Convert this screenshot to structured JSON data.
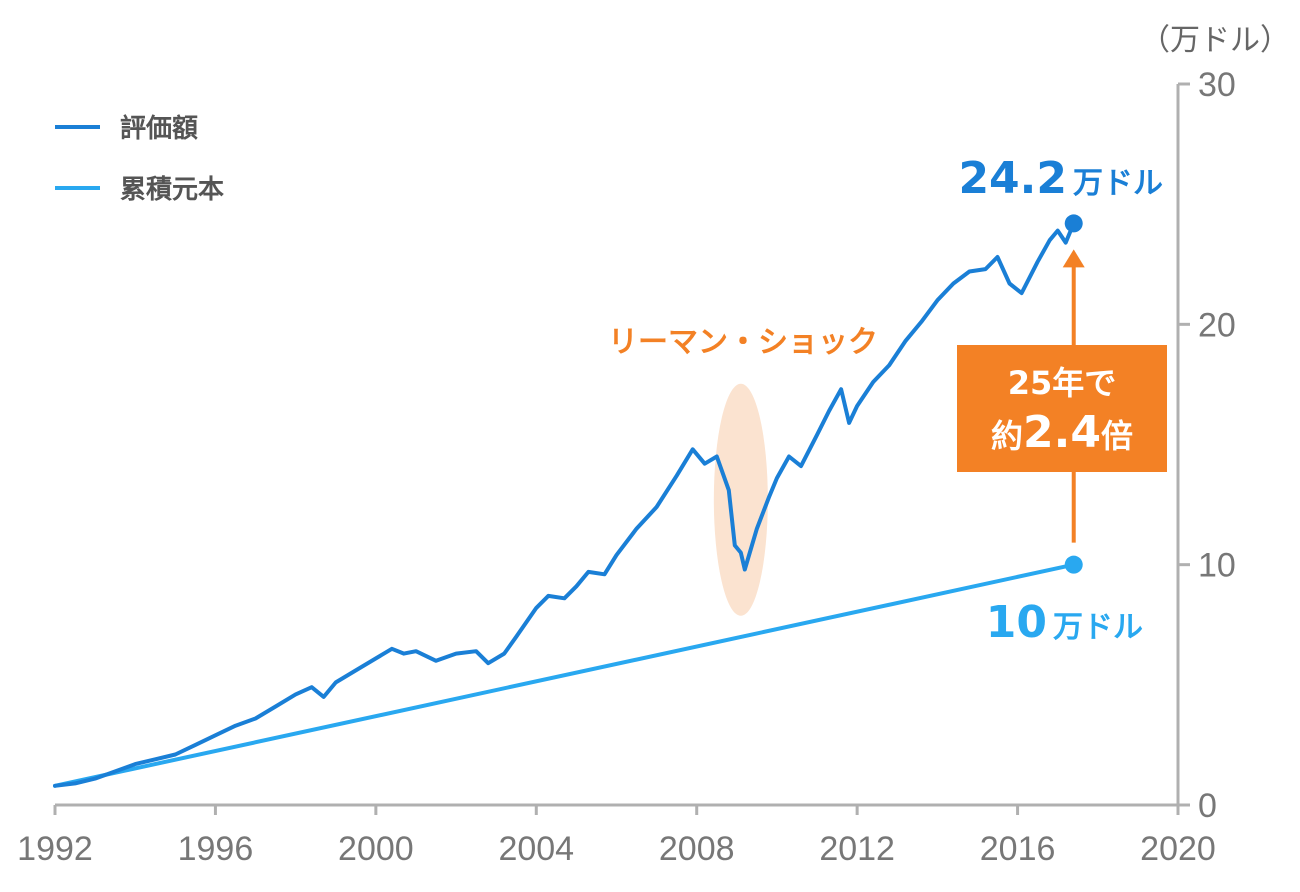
{
  "chart_data": {
    "type": "line",
    "unit_label": "（万ドル）",
    "x_ticks": [
      "1992",
      "1996",
      "2000",
      "2004",
      "2008",
      "2012",
      "2016",
      "2020"
    ],
    "y_ticks": [
      "0",
      "10",
      "20",
      "30"
    ],
    "xlim": [
      1992,
      2020
    ],
    "ylim": [
      0,
      30
    ],
    "grid": false,
    "legend_position": "top-left",
    "series": [
      {
        "name": "評価額",
        "color": "#1a7fd6",
        "points": [
          [
            1992.0,
            0.8
          ],
          [
            1992.5,
            0.9
          ],
          [
            1993.0,
            1.1
          ],
          [
            1993.5,
            1.4
          ],
          [
            1994.0,
            1.7
          ],
          [
            1994.5,
            1.9
          ],
          [
            1995.0,
            2.1
          ],
          [
            1995.5,
            2.5
          ],
          [
            1996.0,
            2.9
          ],
          [
            1996.5,
            3.3
          ],
          [
            1997.0,
            3.6
          ],
          [
            1997.5,
            4.1
          ],
          [
            1998.0,
            4.6
          ],
          [
            1998.4,
            4.9
          ],
          [
            1998.7,
            4.5
          ],
          [
            1999.0,
            5.1
          ],
          [
            1999.5,
            5.6
          ],
          [
            2000.0,
            6.1
          ],
          [
            2000.4,
            6.5
          ],
          [
            2000.7,
            6.3
          ],
          [
            2001.0,
            6.4
          ],
          [
            2001.5,
            6.0
          ],
          [
            2002.0,
            6.3
          ],
          [
            2002.5,
            6.4
          ],
          [
            2002.8,
            5.9
          ],
          [
            2003.2,
            6.3
          ],
          [
            2003.5,
            7.0
          ],
          [
            2004.0,
            8.2
          ],
          [
            2004.3,
            8.7
          ],
          [
            2004.7,
            8.6
          ],
          [
            2005.0,
            9.1
          ],
          [
            2005.3,
            9.7
          ],
          [
            2005.7,
            9.6
          ],
          [
            2006.0,
            10.4
          ],
          [
            2006.5,
            11.5
          ],
          [
            2007.0,
            12.4
          ],
          [
            2007.5,
            13.7
          ],
          [
            2007.9,
            14.8
          ],
          [
            2008.2,
            14.2
          ],
          [
            2008.5,
            14.5
          ],
          [
            2008.8,
            13.1
          ],
          [
            2008.95,
            10.8
          ],
          [
            2009.1,
            10.5
          ],
          [
            2009.2,
            9.8
          ],
          [
            2009.5,
            11.5
          ],
          [
            2009.8,
            12.8
          ],
          [
            2010.0,
            13.6
          ],
          [
            2010.3,
            14.5
          ],
          [
            2010.6,
            14.1
          ],
          [
            2011.0,
            15.4
          ],
          [
            2011.3,
            16.4
          ],
          [
            2011.6,
            17.3
          ],
          [
            2011.8,
            15.9
          ],
          [
            2012.0,
            16.6
          ],
          [
            2012.4,
            17.6
          ],
          [
            2012.8,
            18.3
          ],
          [
            2013.2,
            19.3
          ],
          [
            2013.6,
            20.1
          ],
          [
            2014.0,
            21.0
          ],
          [
            2014.4,
            21.7
          ],
          [
            2014.8,
            22.2
          ],
          [
            2015.2,
            22.3
          ],
          [
            2015.5,
            22.8
          ],
          [
            2015.8,
            21.7
          ],
          [
            2016.1,
            21.3
          ],
          [
            2016.5,
            22.6
          ],
          [
            2016.8,
            23.5
          ],
          [
            2017.0,
            23.9
          ],
          [
            2017.2,
            23.4
          ],
          [
            2017.4,
            24.2
          ]
        ]
      },
      {
        "name": "累積元本",
        "color": "#29a8f0",
        "points": [
          [
            1992.0,
            0.8
          ],
          [
            2017.4,
            10.0
          ]
        ]
      }
    ],
    "end_labels": [
      {
        "series": "評価額",
        "num": "24.2",
        "unit": "万ドル",
        "x": 2017.4,
        "y": 24.2
      },
      {
        "series": "累積元本",
        "num": "10",
        "unit": "万ドル",
        "x": 2017.4,
        "y": 10.0
      }
    ],
    "annotations": {
      "crisis_label": "リーマン・ショック",
      "crisis_x": 2009.1,
      "crisis_y_center": 12.7,
      "growth_line1": "25年で",
      "growth_line2_prefix": "約",
      "growth_line2_num": "2.4",
      "growth_line2_suffix": "倍",
      "highlight_color": "#f38125",
      "ellipse_color": "#fbe3d0"
    }
  }
}
